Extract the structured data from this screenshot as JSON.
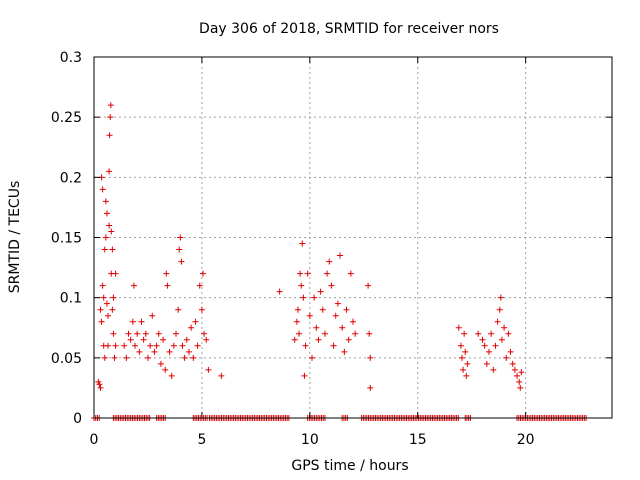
{
  "chart_data": {
    "type": "scatter",
    "title": "Day 306 of 2018, SRMTID for receiver nors",
    "xlabel": "GPS time / hours",
    "ylabel": "SRMTID / TECUs",
    "xlim": [
      0,
      24
    ],
    "ylim": [
      0,
      0.3
    ],
    "xticks": [
      0,
      5,
      10,
      15,
      20
    ],
    "xtick_labels": [
      "0",
      "5",
      "10",
      "15",
      "20"
    ],
    "yticks": [
      0,
      0.05,
      0.1,
      0.15,
      0.2,
      0.25,
      0.3
    ],
    "ytick_labels": [
      "0",
      "0.05",
      "0.1",
      "0.15",
      "0.2",
      "0.25",
      "0.3"
    ],
    "grid": true,
    "marker": "+",
    "color": "#e00000",
    "series": [
      {
        "name": "SRMTID",
        "points": [
          [
            0.2,
            0.03
          ],
          [
            0.25,
            0.028
          ],
          [
            0.3,
            0.025
          ],
          [
            0.3,
            0.09
          ],
          [
            0.35,
            0.08
          ],
          [
            0.35,
            0.2
          ],
          [
            0.4,
            0.19
          ],
          [
            0.4,
            0.11
          ],
          [
            0.45,
            0.1
          ],
          [
            0.45,
            0.06
          ],
          [
            0.5,
            0.05
          ],
          [
            0.5,
            0.14
          ],
          [
            0.55,
            0.15
          ],
          [
            0.55,
            0.18
          ],
          [
            0.6,
            0.17
          ],
          [
            0.6,
            0.095
          ],
          [
            0.65,
            0.085
          ],
          [
            0.65,
            0.06
          ],
          [
            0.7,
            0.205
          ],
          [
            0.7,
            0.16
          ],
          [
            0.72,
            0.235
          ],
          [
            0.75,
            0.25
          ],
          [
            0.78,
            0.26
          ],
          [
            0.8,
            0.155
          ],
          [
            0.8,
            0.12
          ],
          [
            0.85,
            0.14
          ],
          [
            0.85,
            0.09
          ],
          [
            0.9,
            0.1
          ],
          [
            0.9,
            0.07
          ],
          [
            0.95,
            0.05
          ],
          [
            1.0,
            0.06
          ],
          [
            1.0,
            0.12
          ],
          [
            1.4,
            0.06
          ],
          [
            1.5,
            0.05
          ],
          [
            1.6,
            0.07
          ],
          [
            1.7,
            0.065
          ],
          [
            1.8,
            0.08
          ],
          [
            1.85,
            0.11
          ],
          [
            1.9,
            0.06
          ],
          [
            2.0,
            0.07
          ],
          [
            2.1,
            0.055
          ],
          [
            2.2,
            0.08
          ],
          [
            2.3,
            0.065
          ],
          [
            2.4,
            0.07
          ],
          [
            2.5,
            0.05
          ],
          [
            2.6,
            0.06
          ],
          [
            2.7,
            0.085
          ],
          [
            2.8,
            0.055
          ],
          [
            2.9,
            0.06
          ],
          [
            3.0,
            0.07
          ],
          [
            3.1,
            0.045
          ],
          [
            3.2,
            0.065
          ],
          [
            3.3,
            0.04
          ],
          [
            3.35,
            0.12
          ],
          [
            3.4,
            0.11
          ],
          [
            3.5,
            0.055
          ],
          [
            3.6,
            0.035
          ],
          [
            3.7,
            0.06
          ],
          [
            3.8,
            0.07
          ],
          [
            3.9,
            0.09
          ],
          [
            3.95,
            0.14
          ],
          [
            4.0,
            0.15
          ],
          [
            4.05,
            0.13
          ],
          [
            4.1,
            0.06
          ],
          [
            4.2,
            0.05
          ],
          [
            4.3,
            0.065
          ],
          [
            4.4,
            0.055
          ],
          [
            4.5,
            0.075
          ],
          [
            4.6,
            0.05
          ],
          [
            4.7,
            0.08
          ],
          [
            4.8,
            0.06
          ],
          [
            4.9,
            0.11
          ],
          [
            5.0,
            0.09
          ],
          [
            5.05,
            0.12
          ],
          [
            5.1,
            0.07
          ],
          [
            5.2,
            0.065
          ],
          [
            5.3,
            0.04
          ],
          [
            5.9,
            0.035
          ],
          [
            8.6,
            0.105
          ],
          [
            9.3,
            0.065
          ],
          [
            9.4,
            0.08
          ],
          [
            9.45,
            0.09
          ],
          [
            9.5,
            0.07
          ],
          [
            9.55,
            0.12
          ],
          [
            9.6,
            0.11
          ],
          [
            9.65,
            0.145
          ],
          [
            9.7,
            0.1
          ],
          [
            9.75,
            0.035
          ],
          [
            9.8,
            0.06
          ],
          [
            9.9,
            0.12
          ],
          [
            10.0,
            0.085
          ],
          [
            10.1,
            0.05
          ],
          [
            10.2,
            0.1
          ],
          [
            10.3,
            0.075
          ],
          [
            10.4,
            0.065
          ],
          [
            10.5,
            0.105
          ],
          [
            10.6,
            0.09
          ],
          [
            10.7,
            0.07
          ],
          [
            10.8,
            0.12
          ],
          [
            10.9,
            0.13
          ],
          [
            11.0,
            0.11
          ],
          [
            11.1,
            0.06
          ],
          [
            11.2,
            0.085
          ],
          [
            11.3,
            0.095
          ],
          [
            11.4,
            0.135
          ],
          [
            11.5,
            0.075
          ],
          [
            11.6,
            0.055
          ],
          [
            11.7,
            0.09
          ],
          [
            11.8,
            0.065
          ],
          [
            11.9,
            0.12
          ],
          [
            12.0,
            0.08
          ],
          [
            12.1,
            0.07
          ],
          [
            12.7,
            0.11
          ],
          [
            12.75,
            0.07
          ],
          [
            12.8,
            0.05
          ],
          [
            12.8,
            0.025
          ],
          [
            16.9,
            0.075
          ],
          [
            17.0,
            0.06
          ],
          [
            17.05,
            0.05
          ],
          [
            17.1,
            0.04
          ],
          [
            17.15,
            0.07
          ],
          [
            17.2,
            0.055
          ],
          [
            17.25,
            0.035
          ],
          [
            17.3,
            0.045
          ],
          [
            17.8,
            0.07
          ],
          [
            18.0,
            0.065
          ],
          [
            18.1,
            0.06
          ],
          [
            18.2,
            0.045
          ],
          [
            18.3,
            0.055
          ],
          [
            18.4,
            0.07
          ],
          [
            18.5,
            0.04
          ],
          [
            18.6,
            0.06
          ],
          [
            18.7,
            0.08
          ],
          [
            18.8,
            0.09
          ],
          [
            18.85,
            0.1
          ],
          [
            18.9,
            0.065
          ],
          [
            19.0,
            0.075
          ],
          [
            19.1,
            0.05
          ],
          [
            19.2,
            0.07
          ],
          [
            19.3,
            0.055
          ],
          [
            19.4,
            0.045
          ],
          [
            19.5,
            0.04
          ],
          [
            19.6,
            0.035
          ],
          [
            19.7,
            0.03
          ],
          [
            19.75,
            0.025
          ],
          [
            19.8,
            0.038
          ]
        ],
        "zero_intervals": [
          [
            0,
            0.25
          ],
          [
            0.9,
            2.6
          ],
          [
            2.9,
            3.3
          ],
          [
            4.6,
            5.3
          ],
          [
            5.35,
            9.1
          ],
          [
            9.9,
            10.7
          ],
          [
            11.5,
            11.8
          ],
          [
            12.4,
            16.9
          ],
          [
            17.2,
            17.5
          ],
          [
            19.6,
            22.8
          ]
        ]
      }
    ]
  }
}
